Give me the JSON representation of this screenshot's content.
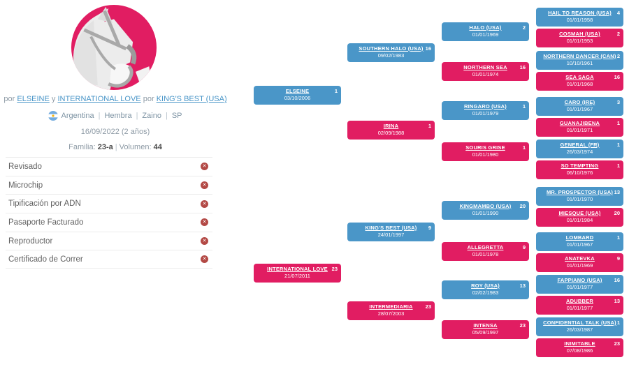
{
  "colors": {
    "blue": "#4a96c8",
    "pink": "#e11d62",
    "link_blue": "#4a96c8",
    "muted_text": "#8d9aa5",
    "info_text": "#7d93a3",
    "error_red": "#b34945",
    "divider": "#ececec",
    "flag_blue": "#74acdf",
    "flag_sun": "#f6b40e",
    "logo_pink": "#e11d62"
  },
  "icons": {
    "x_mark": "✕",
    "flag": "argentina-flag-icon",
    "logo": "horse-head-logo"
  },
  "profile": {
    "por1": "por",
    "sire": "ELSEINE",
    "conj": "y",
    "dam": "INTERNATIONAL LOVE",
    "por2": "por",
    "damsire": "KING'S BEST (USA)",
    "attrs": [
      "Argentina",
      "Hembra",
      "Zaino",
      "SP"
    ],
    "birth": "16/09/2022 (2 años)",
    "familia_label": "Familia:",
    "familia_value": "23-a",
    "volumen_label": "Volumen:",
    "volumen_value": "44"
  },
  "checklist": [
    {
      "label": "Revisado",
      "status": "no"
    },
    {
      "label": "Microchip",
      "status": "no"
    },
    {
      "label": "Tipificación por ADN",
      "status": "no"
    },
    {
      "label": "Pasaporte Facturado",
      "status": "no"
    },
    {
      "label": "Reproductor",
      "status": "no"
    },
    {
      "label": "Certificado de Correr",
      "status": "no"
    }
  ],
  "pedigree": {
    "generations": [
      {
        "nodes": [
          {
            "name": "ELSEINE",
            "date": "03/10/2006",
            "count": "1"
          },
          {
            "name": "INTERNATIONAL LOVE",
            "date": "21/07/2011",
            "count": "23"
          }
        ]
      },
      {
        "nodes": [
          {
            "name": "SOUTHERN HALO (USA)",
            "date": "09/02/1983",
            "count": "16"
          },
          {
            "name": "IRINA",
            "date": "02/09/1988",
            "count": "1"
          },
          {
            "name": "KING'S BEST (USA)",
            "date": "24/01/1997",
            "count": "9"
          },
          {
            "name": "INTERMEDIARIA",
            "date": "28/07/2003",
            "count": "23"
          }
        ]
      },
      {
        "nodes": [
          {
            "name": "HALO (USA)",
            "date": "01/01/1969",
            "count": "2"
          },
          {
            "name": "NORTHERN SEA",
            "date": "01/01/1974",
            "count": "16"
          },
          {
            "name": "RINGARO (USA)",
            "date": "01/01/1979",
            "count": "1"
          },
          {
            "name": "SOURIS GRISE",
            "date": "01/01/1980",
            "count": "1"
          },
          {
            "name": "KINGMAMBO (USA)",
            "date": "01/01/1990",
            "count": "20"
          },
          {
            "name": "ALLEGRETTA",
            "date": "01/01/1978",
            "count": "9"
          },
          {
            "name": "ROY (USA)",
            "date": "02/02/1983",
            "count": "13"
          },
          {
            "name": "INTENSA",
            "date": "05/09/1997",
            "count": "23"
          }
        ]
      },
      {
        "nodes": [
          {
            "name": "HAIL TO REASON (USA)",
            "date": "01/01/1958",
            "count": "4"
          },
          {
            "name": "COSMAH (USA)",
            "date": "01/01/1953",
            "count": "2"
          },
          {
            "name": "NORTHERN DANCER (CAN)",
            "date": "10/10/1961",
            "count": "2"
          },
          {
            "name": "SEA SAGA",
            "date": "01/01/1968",
            "count": "16"
          },
          {
            "name": "CARO (IRE)",
            "date": "01/01/1967",
            "count": "3"
          },
          {
            "name": "GUANAJIBENA",
            "date": "01/01/1971",
            "count": "1"
          },
          {
            "name": "GENERAL (FR)",
            "date": "26/03/1974",
            "count": "1"
          },
          {
            "name": "SO TEMPTING",
            "date": "06/10/1976",
            "count": "1"
          },
          {
            "name": "MR. PROSPECTOR (USA)",
            "date": "01/01/1970",
            "count": "13"
          },
          {
            "name": "MIESQUE (USA)",
            "date": "01/01/1984",
            "count": "20"
          },
          {
            "name": "LOMBARD",
            "date": "01/01/1967",
            "count": "1"
          },
          {
            "name": "ANATEVKA",
            "date": "01/01/1969",
            "count": "9"
          },
          {
            "name": "FAPPIANO (USA)",
            "date": "01/01/1977",
            "count": "16"
          },
          {
            "name": "ADUBBER",
            "date": "01/01/1977",
            "count": "13"
          },
          {
            "name": "CONFIDENTIAL TALK (USA)",
            "date": "26/03/1987",
            "count": "1"
          },
          {
            "name": "INIMITABLE",
            "date": "07/08/1986",
            "count": "23"
          }
        ]
      }
    ]
  }
}
